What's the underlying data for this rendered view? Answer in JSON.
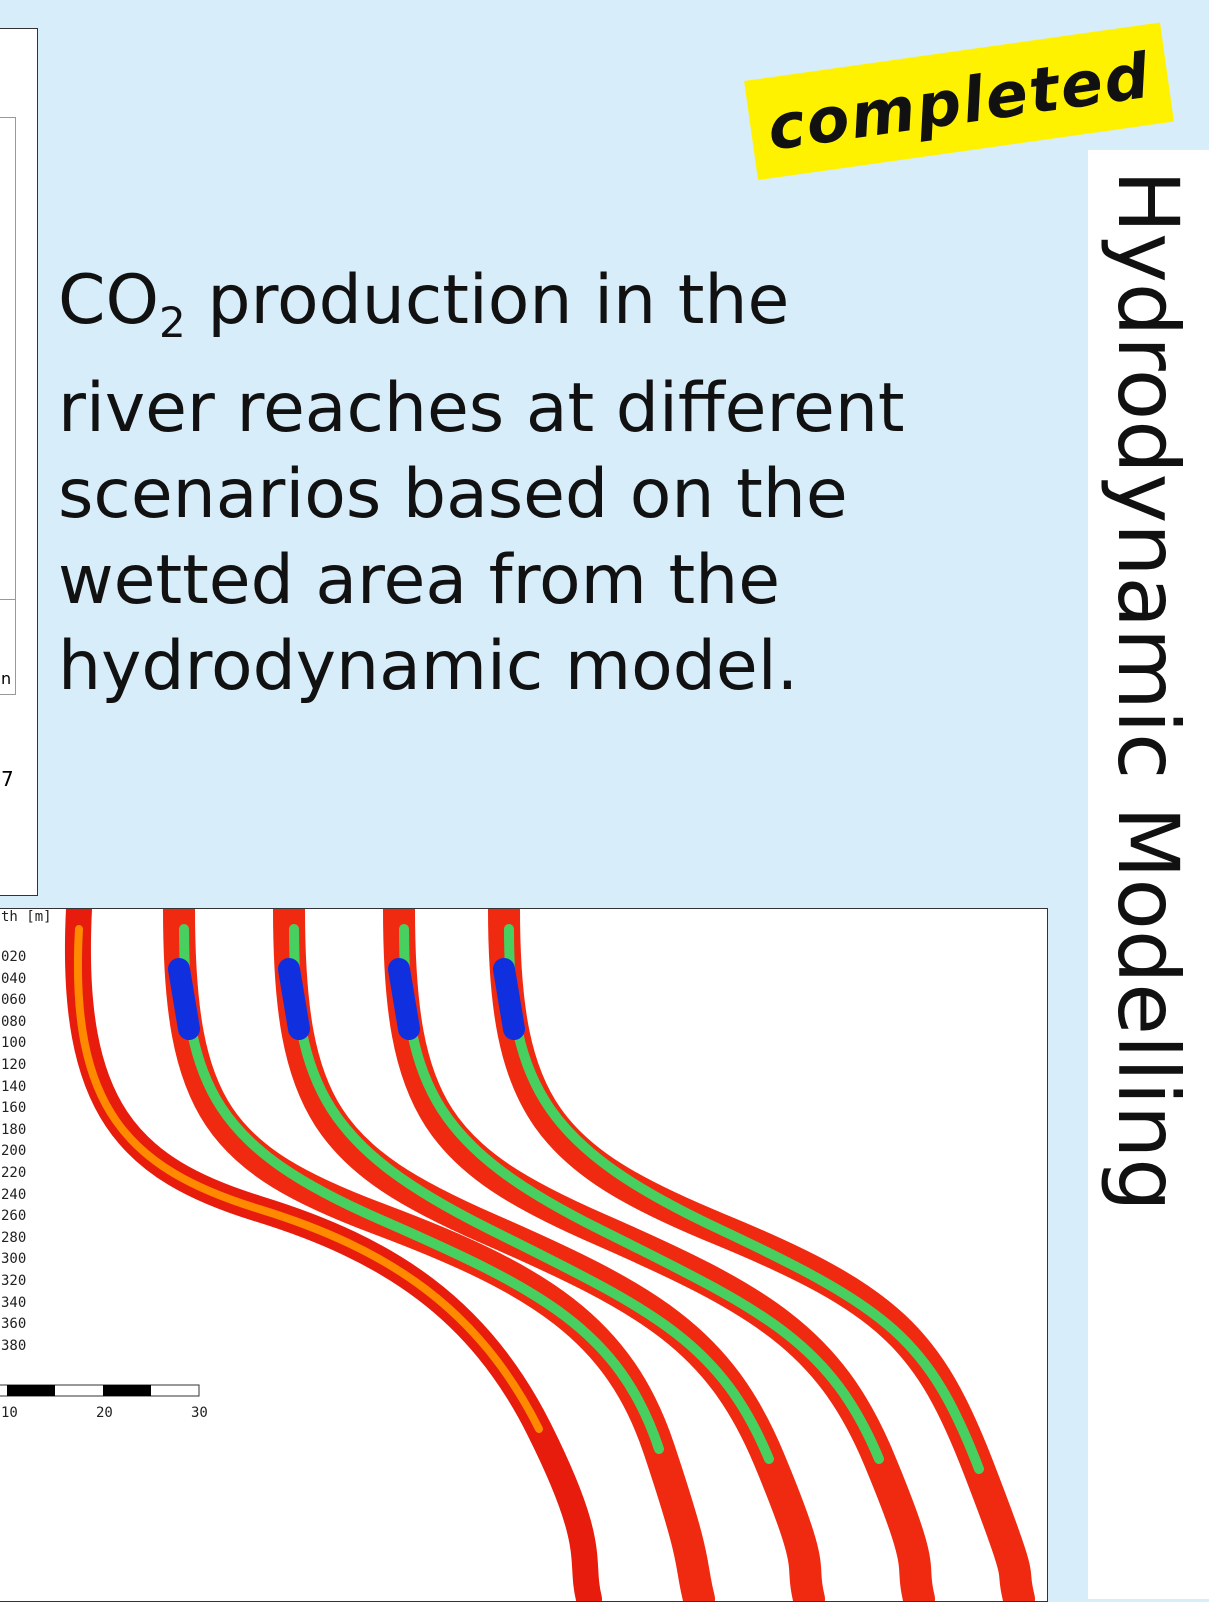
{
  "badge": "completed",
  "side_title": "Hydrodynamic Modelling",
  "description": {
    "formula_main": "CO",
    "formula_sub": "2",
    "first_line_rest": " production in the",
    "lines": [
      "river reaches at different",
      "scenarios based on the",
      "wetted area from the",
      "hydrodynamic model."
    ]
  },
  "top_figure": {
    "partial_label": "n",
    "partial_tick": "7"
  },
  "map_figure": {
    "legend_title": "th [m]",
    "legend_labels": [
      "020",
      "040",
      "060",
      "080",
      "100",
      "120",
      "140",
      "160",
      "180",
      "200",
      "220",
      "240",
      "260",
      "280",
      "300",
      "320",
      "340",
      "360",
      "380"
    ],
    "scale_labels": [
      "10",
      "20",
      "30"
    ]
  }
}
